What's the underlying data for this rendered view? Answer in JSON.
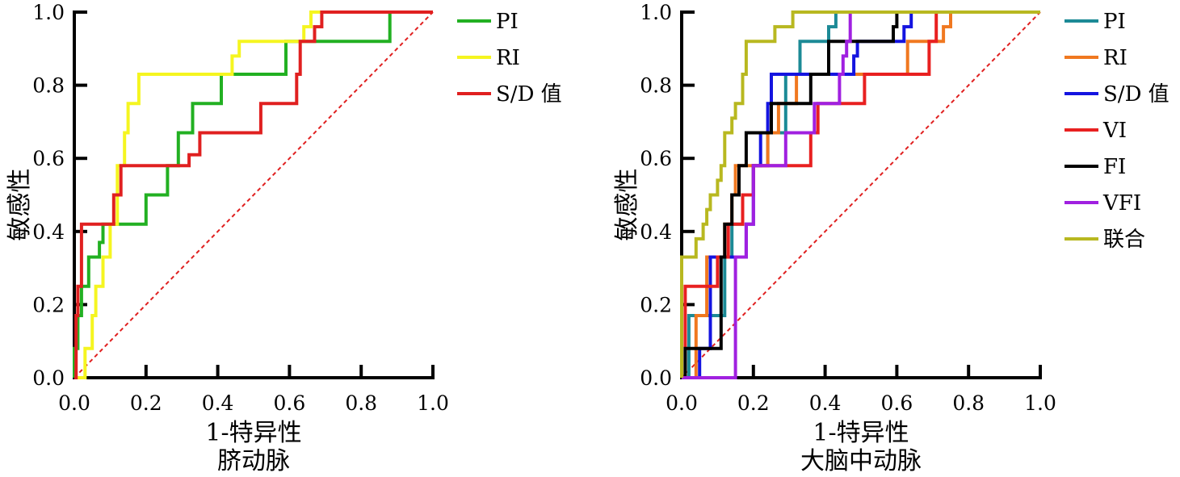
{
  "chart_data": [
    {
      "type": "line",
      "subtitle": "脐动脉",
      "xlabel": "1-特异性",
      "ylabel": "敏感性",
      "xlim": [
        0,
        1
      ],
      "ylim": [
        0,
        1
      ],
      "xticks": [
        "0.0",
        "0.2",
        "0.4",
        "0.6",
        "0.8",
        "1.0"
      ],
      "yticks": [
        "0.0",
        "0.2",
        "0.4",
        "0.6",
        "0.8",
        "1.0"
      ],
      "grid": false,
      "legend_position": "top-right",
      "reference_line": {
        "x": [
          0,
          1
        ],
        "y": [
          0,
          1
        ],
        "color": "#e02020",
        "dash": true
      },
      "series": [
        {
          "name": "PI",
          "color": "#22b022",
          "x": [
            0,
            0,
            0.01,
            0.01,
            0.02,
            0.02,
            0.04,
            0.04,
            0.07,
            0.07,
            0.08,
            0.08,
            0.2,
            0.2,
            0.26,
            0.26,
            0.29,
            0.29,
            0.33,
            0.33,
            0.41,
            0.41,
            0.45,
            0.45,
            0.59,
            0.59,
            0.61,
            0.61,
            0.88,
            0.88,
            1
          ],
          "y": [
            0,
            0.08,
            0.08,
            0.17,
            0.17,
            0.25,
            0.25,
            0.33,
            0.33,
            0.37,
            0.37,
            0.42,
            0.42,
            0.5,
            0.5,
            0.58,
            0.58,
            0.67,
            0.67,
            0.75,
            0.75,
            0.83,
            0.83,
            0.83,
            0.83,
            0.92,
            0.92,
            0.92,
            0.92,
            1,
            1
          ]
        },
        {
          "name": "RI",
          "color": "#f5f520",
          "x": [
            0,
            0.03,
            0.03,
            0.05,
            0.05,
            0.06,
            0.06,
            0.08,
            0.08,
            0.1,
            0.1,
            0.12,
            0.12,
            0.14,
            0.14,
            0.15,
            0.15,
            0.18,
            0.18,
            0.44,
            0.44,
            0.46,
            0.46,
            0.62,
            0.62,
            0.64,
            0.64,
            0.66,
            0.66,
            1
          ],
          "y": [
            0,
            0,
            0.08,
            0.08,
            0.17,
            0.17,
            0.25,
            0.25,
            0.33,
            0.33,
            0.42,
            0.42,
            0.58,
            0.58,
            0.67,
            0.67,
            0.75,
            0.75,
            0.83,
            0.83,
            0.88,
            0.88,
            0.92,
            0.92,
            0.92,
            0.92,
            0.96,
            0.96,
            1,
            1
          ]
        },
        {
          "name": "S/D 值",
          "color": "#e02020",
          "x": [
            0,
            0.005,
            0.005,
            0.01,
            0.01,
            0.02,
            0.02,
            0.11,
            0.11,
            0.13,
            0.13,
            0.32,
            0.32,
            0.35,
            0.35,
            0.52,
            0.52,
            0.55,
            0.55,
            0.62,
            0.62,
            0.63,
            0.63,
            0.67,
            0.67,
            0.69,
            0.69,
            1
          ],
          "y": [
            0,
            0,
            0.17,
            0.17,
            0.25,
            0.25,
            0.42,
            0.42,
            0.5,
            0.5,
            0.58,
            0.58,
            0.61,
            0.61,
            0.67,
            0.67,
            0.75,
            0.75,
            0.75,
            0.75,
            0.83,
            0.83,
            0.92,
            0.92,
            0.96,
            0.96,
            1,
            1
          ]
        }
      ]
    },
    {
      "type": "line",
      "subtitle": "大脑中动脉",
      "xlabel": "1-特异性",
      "ylabel": "敏感性",
      "xlim": [
        0,
        1
      ],
      "ylim": [
        0,
        1
      ],
      "xticks": [
        "0.0",
        "0.2",
        "0.4",
        "0.6",
        "0.8",
        "1.0"
      ],
      "yticks": [
        "0.0",
        "0.2",
        "0.4",
        "0.6",
        "0.8",
        "1.0"
      ],
      "grid": false,
      "legend_position": "top-right",
      "reference_line": {
        "x": [
          0,
          1
        ],
        "y": [
          0,
          1
        ],
        "color": "#e02020",
        "dash": true
      },
      "series": [
        {
          "name": "PI",
          "color": "#1c8a96",
          "x": [
            0,
            0.02,
            0.02,
            0.12,
            0.12,
            0.14,
            0.14,
            0.17,
            0.17,
            0.2,
            0.2,
            0.24,
            0.24,
            0.29,
            0.29,
            0.33,
            0.33,
            0.41,
            0.41,
            0.43,
            0.43,
            1
          ],
          "y": [
            0,
            0,
            0.17,
            0.17,
            0.33,
            0.33,
            0.42,
            0.42,
            0.5,
            0.5,
            0.58,
            0.58,
            0.67,
            0.67,
            0.83,
            0.83,
            0.92,
            0.92,
            0.96,
            0.96,
            1,
            1
          ]
        },
        {
          "name": "RI",
          "color": "#f07820",
          "x": [
            0,
            0.04,
            0.04,
            0.07,
            0.07,
            0.12,
            0.12,
            0.14,
            0.14,
            0.15,
            0.15,
            0.24,
            0.24,
            0.27,
            0.27,
            0.32,
            0.32,
            0.36,
            0.36,
            0.63,
            0.63,
            0.66,
            0.66,
            0.73,
            0.73,
            0.75,
            0.75,
            1
          ],
          "y": [
            0,
            0,
            0.17,
            0.17,
            0.33,
            0.33,
            0.42,
            0.42,
            0.5,
            0.5,
            0.58,
            0.58,
            0.67,
            0.67,
            0.75,
            0.75,
            0.83,
            0.83,
            0.83,
            0.83,
            0.92,
            0.92,
            0.92,
            0.92,
            0.96,
            0.96,
            1,
            1
          ]
        },
        {
          "name": "S/D 值",
          "color": "#1414e0",
          "x": [
            0,
            0.05,
            0.05,
            0.08,
            0.08,
            0.1,
            0.1,
            0.18,
            0.18,
            0.2,
            0.2,
            0.22,
            0.22,
            0.24,
            0.24,
            0.25,
            0.25,
            0.27,
            0.27,
            0.48,
            0.48,
            0.49,
            0.49,
            0.59,
            0.59,
            0.62,
            0.62,
            0.64,
            0.64,
            1
          ],
          "y": [
            0,
            0,
            0.08,
            0.08,
            0.33,
            0.33,
            0.33,
            0.33,
            0.42,
            0.42,
            0.58,
            0.58,
            0.67,
            0.67,
            0.75,
            0.75,
            0.83,
            0.83,
            0.83,
            0.83,
            0.88,
            0.88,
            0.92,
            0.92,
            0.92,
            0.92,
            0.96,
            0.96,
            1,
            1
          ]
        },
        {
          "name": "VI",
          "color": "#e82020",
          "x": [
            0,
            0.01,
            0.01,
            0.1,
            0.1,
            0.13,
            0.13,
            0.17,
            0.17,
            0.2,
            0.2,
            0.2,
            0.2,
            0.36,
            0.36,
            0.37,
            0.37,
            0.38,
            0.38,
            0.51,
            0.51,
            0.69,
            0.69,
            0.71,
            0.71,
            1
          ],
          "y": [
            0,
            0,
            0.25,
            0.25,
            0.33,
            0.33,
            0.42,
            0.42,
            0.5,
            0.5,
            0.58,
            0.58,
            0.58,
            0.58,
            0.67,
            0.67,
            0.67,
            0.67,
            0.75,
            0.75,
            0.83,
            0.83,
            0.92,
            0.92,
            1,
            1
          ]
        },
        {
          "name": "FI",
          "color": "#000000",
          "x": [
            0,
            0.01,
            0.01,
            0.11,
            0.11,
            0.12,
            0.12,
            0.14,
            0.14,
            0.16,
            0.16,
            0.18,
            0.18,
            0.25,
            0.25,
            0.27,
            0.27,
            0.36,
            0.36,
            0.41,
            0.41,
            0.48,
            0.48,
            0.59,
            0.59,
            0.6,
            0.6,
            1
          ],
          "y": [
            0,
            0,
            0.08,
            0.08,
            0.33,
            0.33,
            0.42,
            0.42,
            0.5,
            0.5,
            0.58,
            0.58,
            0.67,
            0.67,
            0.75,
            0.75,
            0.75,
            0.75,
            0.83,
            0.83,
            0.92,
            0.92,
            0.92,
            0.92,
            0.96,
            0.96,
            1,
            1
          ]
        },
        {
          "name": "VFI",
          "color": "#a020e0",
          "x": [
            0,
            0.15,
            0.15,
            0.18,
            0.18,
            0.2,
            0.2,
            0.22,
            0.22,
            0.29,
            0.29,
            0.35,
            0.35,
            0.37,
            0.37,
            0.43,
            0.43,
            0.44,
            0.44,
            0.45,
            0.45,
            0.46,
            0.46,
            0.47,
            0.47,
            1
          ],
          "y": [
            0,
            0,
            0.33,
            0.33,
            0.42,
            0.42,
            0.58,
            0.58,
            0.58,
            0.58,
            0.67,
            0.67,
            0.67,
            0.67,
            0.75,
            0.75,
            0.75,
            0.75,
            0.83,
            0.83,
            0.88,
            0.88,
            0.92,
            0.92,
            1,
            1
          ]
        },
        {
          "name": "联合",
          "color": "#b8b820",
          "x": [
            0,
            0,
            0.04,
            0.04,
            0.06,
            0.06,
            0.07,
            0.07,
            0.08,
            0.08,
            0.1,
            0.1,
            0.11,
            0.11,
            0.12,
            0.12,
            0.14,
            0.14,
            0.15,
            0.15,
            0.17,
            0.17,
            0.18,
            0.18,
            0.26,
            0.26,
            0.31,
            0.31,
            0.33,
            0.33,
            1
          ],
          "y": [
            0,
            0.33,
            0.33,
            0.38,
            0.38,
            0.42,
            0.42,
            0.46,
            0.46,
            0.5,
            0.5,
            0.54,
            0.54,
            0.58,
            0.58,
            0.67,
            0.67,
            0.71,
            0.71,
            0.75,
            0.75,
            0.83,
            0.83,
            0.92,
            0.92,
            0.96,
            0.96,
            1,
            1,
            1,
            1
          ]
        }
      ]
    }
  ]
}
